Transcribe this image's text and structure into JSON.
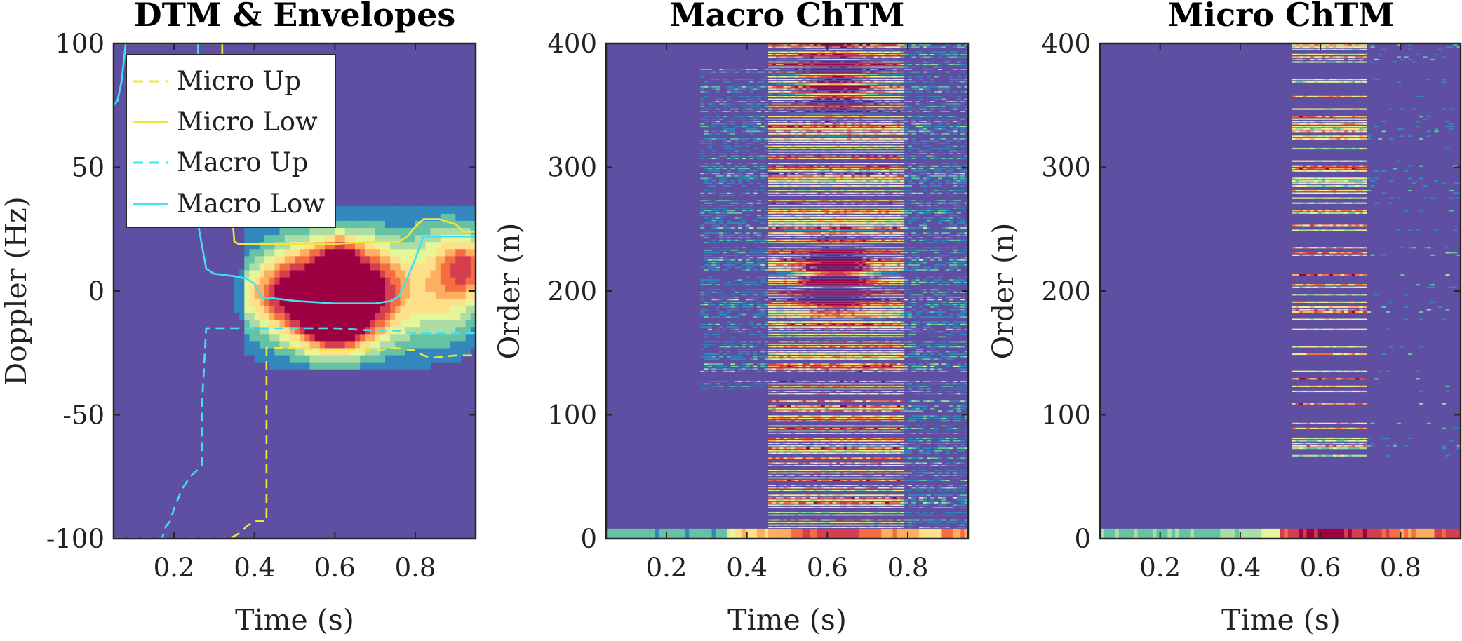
{
  "colors": {
    "background": "#5e4fa2",
    "axis": "#262626",
    "micro": "#f2e637",
    "macro": "#3fe3f0",
    "colormap": [
      "#5e4fa2",
      "#3288bd",
      "#66c2a5",
      "#abdda4",
      "#e6f598",
      "#fee08b",
      "#fdae61",
      "#f46d43",
      "#d53e4f",
      "#9e0142"
    ]
  },
  "chart_data": [
    {
      "type": "heatmap",
      "title": "DTM & Envelopes",
      "xlabel": "Time (s)",
      "ylabel": "Doppler (Hz)",
      "xlim": [
        0.05,
        0.95
      ],
      "ylim": [
        -100,
        100
      ],
      "xticks": [
        0.2,
        0.4,
        0.6,
        0.8
      ],
      "xtick_labels": [
        "0.2",
        "0.4",
        "0.6",
        "0.8"
      ],
      "yticks": [
        -100,
        -50,
        0,
        50,
        100
      ],
      "ytick_labels": [
        "-100",
        "-50",
        "0",
        "50",
        "100"
      ],
      "legend_position": "top-left",
      "blobs": [
        {
          "t": 0.6,
          "f": -11,
          "st": 0.05,
          "sf": 8,
          "a": 1.0
        },
        {
          "t": 0.6,
          "f": -4,
          "st": 0.13,
          "sf": 15,
          "a": 0.55
        },
        {
          "t": 0.61,
          "f": 13,
          "st": 0.04,
          "sf": 7,
          "a": 0.6
        },
        {
          "t": 0.51,
          "f": 2,
          "st": 0.05,
          "sf": 12,
          "a": 0.4
        },
        {
          "t": 0.7,
          "f": 2,
          "st": 0.05,
          "sf": 13,
          "a": 0.4
        },
        {
          "t": 0.88,
          "f": 5,
          "st": 0.07,
          "sf": 17,
          "a": 0.45
        },
        {
          "t": 0.93,
          "f": 10,
          "st": 0.04,
          "sf": 8,
          "a": 0.45
        },
        {
          "t": 0.43,
          "f": -1,
          "st": 0.06,
          "sf": 8,
          "a": 0.27
        },
        {
          "t": 0.6,
          "f": 3,
          "st": 0.22,
          "sf": 20,
          "a": 0.22
        }
      ],
      "series": [
        {
          "name": "Micro Up",
          "style": "dashed",
          "color": "#f2e637",
          "t": [
            0.05,
            0.33,
            0.35,
            0.37,
            0.38,
            0.4,
            0.41,
            0.42,
            0.43,
            0.43,
            0.5,
            0.6,
            0.7,
            0.75,
            0.8,
            0.82,
            0.84,
            0.9,
            0.95
          ],
          "f": [
            -100,
            -100,
            -99,
            -97,
            -95,
            -93,
            -93,
            -93,
            -93,
            -23,
            -23,
            -24,
            -24,
            -23,
            -24,
            -26,
            -27,
            -26,
            -26
          ]
        },
        {
          "name": "Micro Low",
          "style": "solid",
          "color": "#f2e637",
          "t": [
            0.06,
            0.06,
            0.32,
            0.32,
            0.35,
            0.36,
            0.5,
            0.6,
            0.7,
            0.76,
            0.78,
            0.8,
            0.82,
            0.85,
            0.86,
            0.9,
            0.92,
            0.95
          ],
          "f": [
            100,
            100,
            100,
            81,
            20,
            19,
            19,
            19,
            20,
            20,
            22,
            26,
            29,
            29,
            29,
            27,
            24,
            24
          ]
        },
        {
          "name": "Macro Up",
          "style": "dashed",
          "color": "#3fe3f0",
          "t": [
            0.05,
            0.17,
            0.18,
            0.19,
            0.2,
            0.21,
            0.22,
            0.24,
            0.26,
            0.27,
            0.27,
            0.28,
            0.3,
            0.4,
            0.5,
            0.6,
            0.7,
            0.75,
            0.8,
            0.95
          ],
          "f": [
            -100,
            -100,
            -95,
            -93,
            -88,
            -84,
            -80,
            -75,
            -72,
            -70,
            -45,
            -15,
            -15,
            -15,
            -15,
            -15,
            -16,
            -16,
            -17,
            -17
          ]
        },
        {
          "name": "Macro Low",
          "style": "solid",
          "color": "#3fe3f0",
          "t": [
            0.05,
            0.06,
            0.07,
            0.08,
            0.09,
            0.12,
            0.14,
            0.18,
            0.26,
            0.26,
            0.28,
            0.3,
            0.35,
            0.38,
            0.4,
            0.42,
            0.45,
            0.5,
            0.6,
            0.7,
            0.74,
            0.76,
            0.78,
            0.8,
            0.82,
            0.86,
            0.9,
            0.95
          ],
          "f": [
            75,
            77,
            85,
            100,
            101,
            101,
            101,
            101,
            101,
            27,
            9,
            7,
            6,
            5,
            3,
            -3,
            -3,
            -4,
            -5,
            -5,
            -4,
            -2,
            5,
            13,
            22,
            22,
            22,
            22
          ]
        }
      ]
    },
    {
      "type": "heatmap",
      "title": "Macro ChTM",
      "xlabel": "Time (s)",
      "ylabel": "Order (n)",
      "xlim": [
        0.05,
        0.95
      ],
      "ylim": [
        0,
        400
      ],
      "xticks": [
        0.2,
        0.4,
        0.6,
        0.8
      ],
      "xtick_labels": [
        "0.2",
        "0.4",
        "0.6",
        "0.8"
      ],
      "yticks": [
        0,
        100,
        200,
        300,
        400
      ],
      "ytick_labels": [
        "0",
        "100",
        "200",
        "300",
        "400"
      ],
      "activity_band": {
        "t_start": 0.45,
        "t_end": 0.79,
        "t_early": 0.28,
        "order_min": 0,
        "order_max": 400
      },
      "hotspots": [
        {
          "t": 0.62,
          "n": 210,
          "a": 0.8
        },
        {
          "t": 0.62,
          "n": 370,
          "a": 0.55
        }
      ]
    },
    {
      "type": "heatmap",
      "title": "Micro ChTM",
      "xlabel": "Time (s)",
      "ylabel": "Order (n)",
      "xlim": [
        0.05,
        0.95
      ],
      "ylim": [
        0,
        400
      ],
      "xticks": [
        0.2,
        0.4,
        0.6,
        0.8
      ],
      "xtick_labels": [
        "0.2",
        "0.4",
        "0.6",
        "0.8"
      ],
      "yticks": [
        0,
        100,
        200,
        300,
        400
      ],
      "ytick_labels": [
        "0",
        "100",
        "200",
        "300",
        "400"
      ],
      "activity_band": {
        "t_start": 0.53,
        "t_end": 0.72,
        "order_min": 60,
        "order_max": 400
      },
      "hotspots": [
        {
          "t": 0.62,
          "n": 5,
          "a": 0.7
        }
      ]
    }
  ]
}
